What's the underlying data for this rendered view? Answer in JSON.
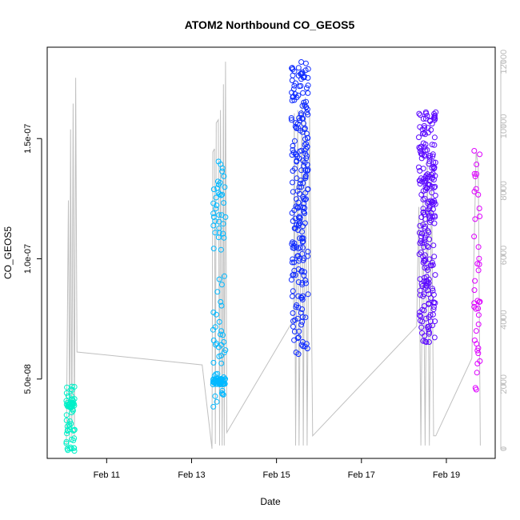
{
  "chart_data": {
    "type": "scatter",
    "title": "ATOM2 Northbound CO_GEOS5",
    "xlabel": "Date",
    "ylabel": "CO_GEOS5",
    "x_tick_labels": [
      "Feb 11",
      "Feb 13",
      "Feb 15",
      "Feb 17",
      "Feb 19"
    ],
    "x_tick_values": [
      11,
      13,
      15,
      17,
      19
    ],
    "x_unit": "day of February",
    "xlim": [
      9.6,
      20.15
    ],
    "ylim": [
      1.7e-08,
      1.88e-07
    ],
    "y_ticks": [
      5e-08,
      1e-07,
      1.5e-07
    ],
    "y_tick_labels": [
      "5.0e-08",
      "1.0e-07",
      "1.5e-07"
    ],
    "y2_label": "",
    "y2lim": [
      -300,
      12450
    ],
    "y2_ticks": [
      0,
      2000,
      4000,
      6000,
      8000,
      10000,
      12000
    ],
    "y2_tick_labels": [
      "0",
      "2000",
      "4000",
      "6000",
      "8000",
      "10000",
      "12000"
    ],
    "y2_series_color": "#c0c0c0",
    "grid": false,
    "color_scale": [
      "#00ffd0",
      "#00c8ff",
      "#0033ff",
      "#6a00ff",
      "#e800ff"
    ],
    "flights": [
      {
        "t0": 10.05,
        "t1": 10.25,
        "co_min": 2e-08,
        "co_max": 4.7e-08,
        "cluster": 3.9e-08,
        "n": 70,
        "color": "#00f0c8",
        "alt_profile": [
          [
            10.05,
            0
          ],
          [
            10.1,
            7700
          ],
          [
            10.13,
            200
          ],
          [
            10.15,
            9900
          ],
          [
            10.18,
            300
          ],
          [
            10.21,
            10700
          ],
          [
            10.24,
            350
          ],
          [
            10.27,
            11500
          ],
          [
            10.3,
            3000
          ]
        ]
      },
      {
        "t0": 13.5,
        "t1": 13.8,
        "co_min": 3.8e-08,
        "co_max": 1.42e-07,
        "cluster": 4.9e-08,
        "n": 120,
        "color": "#00b8ff",
        "alt_profile": [
          [
            13.25,
            2600
          ],
          [
            13.48,
            0
          ],
          [
            13.5,
            9200
          ],
          [
            13.54,
            9300
          ],
          [
            13.56,
            150
          ],
          [
            13.58,
            10100
          ],
          [
            13.63,
            10200
          ],
          [
            13.66,
            100
          ],
          [
            13.68,
            10500
          ],
          [
            13.72,
            100
          ],
          [
            13.75,
            11300
          ],
          [
            13.77,
            100
          ],
          [
            13.8,
            12000
          ],
          [
            13.83,
            500
          ]
        ]
      },
      {
        "t0": 15.35,
        "t1": 15.75,
        "co_min": 6e-08,
        "co_max": 1.82e-07,
        "n": 230,
        "color": "#0f2bff",
        "alt_profile": [
          [
            13.83,
            500
          ],
          [
            15.4,
            4000
          ],
          [
            15.42,
            10400
          ],
          [
            15.45,
            100
          ],
          [
            15.5,
            10500
          ],
          [
            15.53,
            100
          ],
          [
            15.6,
            10800
          ],
          [
            15.63,
            100
          ],
          [
            15.68,
            10900
          ],
          [
            15.72,
            100
          ],
          [
            15.78,
            10400
          ],
          [
            15.85,
            400
          ]
        ]
      },
      {
        "t0": 18.35,
        "t1": 18.75,
        "co_min": 6.5e-08,
        "co_max": 1.62e-07,
        "n": 230,
        "color": "#5b08ff",
        "alt_profile": [
          [
            15.85,
            400
          ],
          [
            18.3,
            3800
          ],
          [
            18.35,
            7500
          ],
          [
            18.4,
            100
          ],
          [
            18.45,
            8000
          ],
          [
            18.5,
            100
          ],
          [
            18.55,
            9000
          ],
          [
            18.6,
            100
          ],
          [
            18.65,
            8800
          ],
          [
            18.7,
            400
          ],
          [
            18.75,
            400
          ]
        ]
      },
      {
        "t0": 19.65,
        "t1": 19.8,
        "co_min": 4.3e-08,
        "co_max": 1.47e-07,
        "n": 40,
        "color": "#dd00ff",
        "alt_profile": [
          [
            18.75,
            400
          ],
          [
            19.6,
            2800
          ],
          [
            19.7,
            9200
          ],
          [
            19.75,
            8800
          ],
          [
            19.8,
            100
          ]
        ]
      }
    ]
  }
}
